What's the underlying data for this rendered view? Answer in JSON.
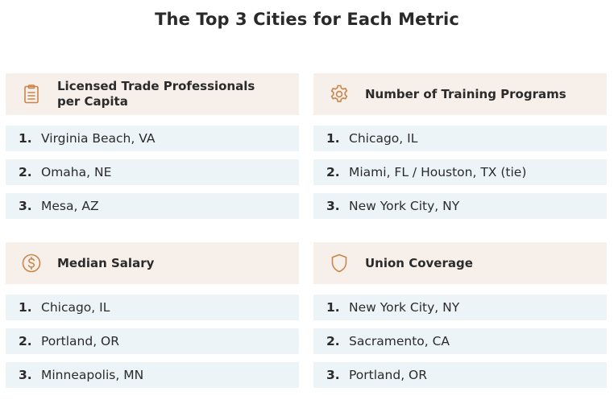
{
  "title": "The Top 3 Cities for Each Metric",
  "colors": {
    "header_bg": "#f6efea",
    "row_bg": "#edf4f8",
    "icon": "#c8864a",
    "text": "#2b2b2b"
  },
  "sections": [
    {
      "icon": "clipboard-icon",
      "title": "Licensed Trade Professionals per Capita",
      "rows": [
        {
          "rank": "1.",
          "city": "Virginia Beach, VA"
        },
        {
          "rank": "2.",
          "city": "Omaha, NE"
        },
        {
          "rank": "3.",
          "city": "Mesa, AZ"
        }
      ]
    },
    {
      "icon": "gear-icon",
      "title": "Number of Training Programs",
      "rows": [
        {
          "rank": "1.",
          "city": "Chicago, IL"
        },
        {
          "rank": "2.",
          "city": "Miami, FL / Houston, TX (tie)"
        },
        {
          "rank": "3.",
          "city": "New York City, NY"
        }
      ]
    },
    {
      "icon": "dollar-icon",
      "title": "Median Salary",
      "rows": [
        {
          "rank": "1.",
          "city": "Chicago, IL"
        },
        {
          "rank": "2.",
          "city": "Portland, OR"
        },
        {
          "rank": "3.",
          "city": "Minneapolis, MN"
        }
      ]
    },
    {
      "icon": "shield-icon",
      "title": "Union Coverage",
      "rows": [
        {
          "rank": "1.",
          "city": "New York City, NY"
        },
        {
          "rank": "2.",
          "city": "Sacramento, CA"
        },
        {
          "rank": "3.",
          "city": "Portland, OR"
        }
      ]
    }
  ]
}
